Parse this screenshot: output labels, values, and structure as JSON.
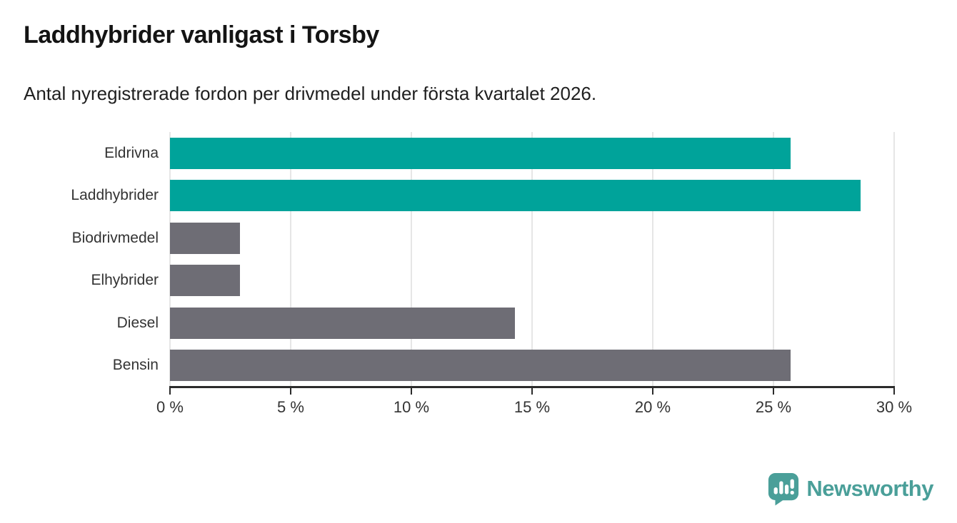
{
  "title": "Laddhybrider vanligast i Torsby",
  "subtitle": "Antal nyregistrerade fordon per drivmedel under första kvartalet 2026.",
  "branding": {
    "logo_text": "Newsworthy",
    "logo_icon": "newsworthy-speech-bubble-chart-icon",
    "brand_color": "#4a9f99"
  },
  "colors": {
    "highlight_bar": "#00a39a",
    "default_bar": "#6e6d75",
    "axis": "#2b2b2b",
    "gridline": "#e6e6e6",
    "label_text": "#333333",
    "title_text": "#141414"
  },
  "chart_data": {
    "type": "bar",
    "orientation": "horizontal",
    "title": "Laddhybrider vanligast i Torsby",
    "subtitle": "Antal nyregistrerade fordon per drivmedel under första kvartalet 2026.",
    "categories": [
      "Eldrivna",
      "Laddhybrider",
      "Biodrivmedel",
      "Elhybrider",
      "Diesel",
      "Bensin"
    ],
    "values": [
      25.7,
      28.6,
      2.9,
      2.9,
      14.3,
      25.7
    ],
    "unit": "%",
    "xlim": [
      0,
      30
    ],
    "x_tick_values": [
      0,
      5,
      10,
      15,
      20,
      25,
      30
    ],
    "x_tick_labels": [
      "0 %",
      "5 %",
      "10 %",
      "15 %",
      "20 %",
      "25 %",
      "30 %"
    ],
    "bar_colors": [
      "#00a39a",
      "#00a39a",
      "#6e6d75",
      "#6e6d75",
      "#6e6d75",
      "#6e6d75"
    ],
    "grid": true,
    "legend": false
  }
}
